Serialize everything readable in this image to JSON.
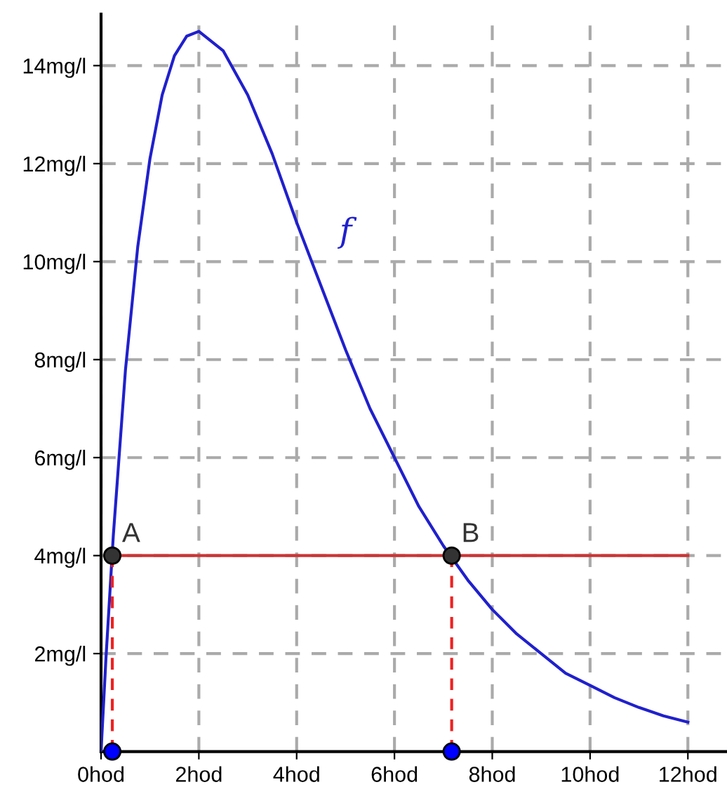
{
  "chart_data": {
    "type": "line",
    "xlim": [
      0,
      12.8
    ],
    "ylim": [
      0,
      15.05
    ],
    "xticks": [
      {
        "value": 0,
        "label": "0hod"
      },
      {
        "value": 2,
        "label": "2hod"
      },
      {
        "value": 4,
        "label": "4hod"
      },
      {
        "value": 6,
        "label": "6hod"
      },
      {
        "value": 8,
        "label": "8hod"
      },
      {
        "value": 10,
        "label": "10hod"
      },
      {
        "value": 12,
        "label": "12hod"
      }
    ],
    "yticks": [
      {
        "value": 2,
        "label": "2mg/l"
      },
      {
        "value": 4,
        "label": "4mg/l"
      },
      {
        "value": 6,
        "label": "6mg/l"
      },
      {
        "value": 8,
        "label": "8mg/l"
      },
      {
        "value": 10,
        "label": "10mg/l"
      },
      {
        "value": 12,
        "label": "12mg/l"
      },
      {
        "value": 14,
        "label": "14mg/l"
      }
    ],
    "grid": true,
    "legend": false,
    "series": [
      {
        "name": "f",
        "color": "#2020cc",
        "x": [
          0,
          0.1,
          0.25,
          0.5,
          0.75,
          1,
          1.25,
          1.5,
          1.75,
          2,
          2.5,
          3,
          3.5,
          4,
          4.5,
          5,
          5.5,
          6,
          6.5,
          7,
          7.5,
          8,
          8.5,
          9,
          9.5,
          10,
          10.5,
          11,
          11.5,
          12
        ],
        "values": [
          0,
          1.9,
          4.4,
          7.8,
          10.3,
          12.1,
          13.4,
          14.2,
          14.6,
          14.7,
          14.3,
          13.4,
          12.2,
          10.8,
          9.5,
          8.2,
          7.0,
          6.0,
          5.0,
          4.2,
          3.5,
          2.9,
          2.4,
          2.0,
          1.6,
          1.35,
          1.1,
          0.9,
          0.73,
          0.6
        ]
      },
      {
        "color": "#cc3333",
        "x": [
          0.23,
          12
        ],
        "values": [
          4,
          4
        ]
      },
      {
        "type": "line",
        "line_style": "dashed",
        "color": "#ee2222",
        "x": [
          0.23,
          0.23
        ],
        "values": [
          0,
          4
        ]
      },
      {
        "type": "line",
        "line_style": "dashed",
        "color": "#ee2222",
        "x": [
          7.17,
          7.17
        ],
        "values": [
          0,
          4
        ]
      },
      {
        "name": "A",
        "type": "scatter",
        "marker": "circle",
        "color": "#333333",
        "x": [
          0.23
        ],
        "values": [
          4
        ]
      },
      {
        "name": "B",
        "type": "scatter",
        "marker": "circle",
        "color": "#333333",
        "x": [
          7.17
        ],
        "values": [
          4
        ]
      },
      {
        "type": "scatter",
        "marker": "circle",
        "color": "#0000ff",
        "x": [
          0.23,
          7.17
        ],
        "values": [
          0,
          0
        ]
      }
    ]
  }
}
